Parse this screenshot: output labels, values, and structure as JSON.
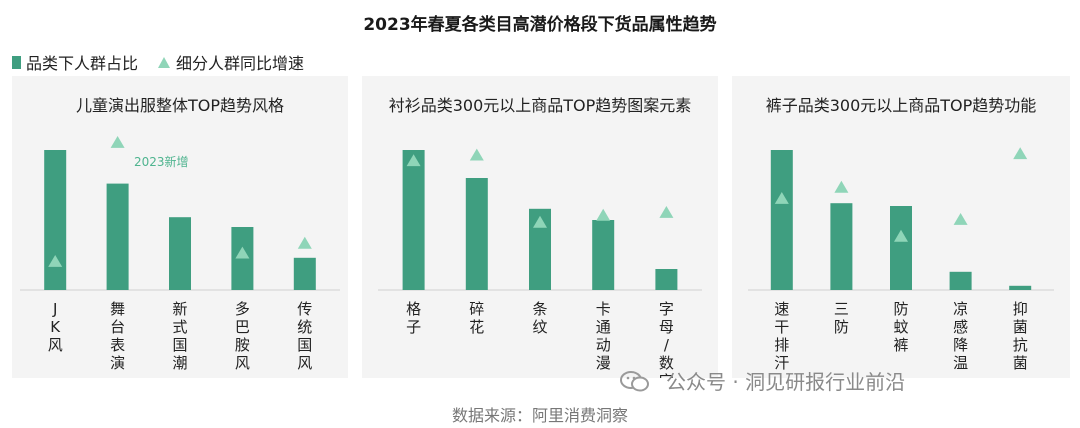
{
  "title": "2023年春夏各类目高潜价格段下货品属性趋势",
  "legend": {
    "bar_label": "品类下人群占比",
    "marker_label": "细分人群同比增速"
  },
  "colors": {
    "bar": "#3f9e80",
    "marker": "#8fd5b8",
    "panel": "#f4f4f4",
    "annotation": "#4fb48f"
  },
  "source": "数据来源：阿里消费洞察",
  "watermark": "公众号 · 洞见研报行业前沿",
  "chart_data": [
    {
      "type": "bar",
      "title": "儿童演出服整体TOP趋势风格",
      "categories": [
        "JK风",
        "舞台表演",
        "新式国潮",
        "多巴胺风",
        "传统国风"
      ],
      "bar_values": [
        100,
        76,
        52,
        45,
        23
      ],
      "marker_values": [
        20,
        105,
        null,
        26,
        33
      ],
      "annotation": "2023新增",
      "ylim": [
        0,
        110
      ]
    },
    {
      "type": "bar",
      "title": "衬衫品类300元以上商品TOP趋势图案元素",
      "categories": [
        "格子",
        "碎花",
        "条纹",
        "卡通动漫",
        "字母/数字/文字"
      ],
      "bar_values": [
        100,
        80,
        58,
        50,
        15
      ],
      "marker_values": [
        92,
        96,
        48,
        53,
        55
      ],
      "annotation": "",
      "ylim": [
        0,
        110
      ]
    },
    {
      "type": "bar",
      "title": "裤子品类300元以上商品TOP趋势功能",
      "categories": [
        "速干排汗",
        "三防",
        "防蚊裤",
        "凉感降温",
        "抑菌抗菌"
      ],
      "bar_values": [
        100,
        62,
        60,
        13,
        3
      ],
      "marker_values": [
        65,
        73,
        38,
        50,
        97
      ],
      "annotation": "",
      "ylim": [
        0,
        110
      ]
    }
  ]
}
